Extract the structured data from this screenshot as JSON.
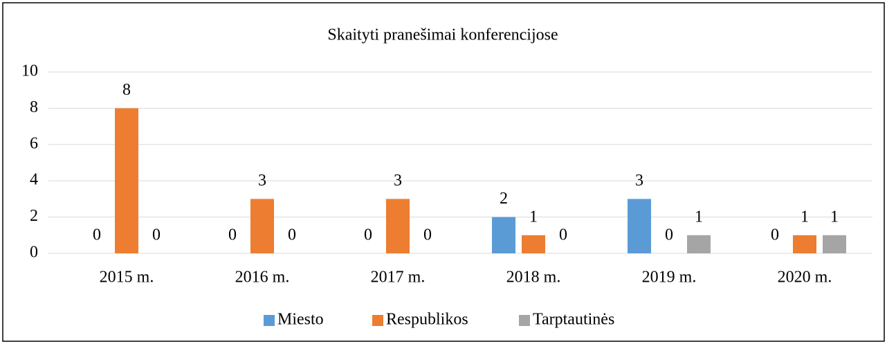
{
  "chart_data": {
    "type": "bar",
    "title": "Skaityti pranešimai konferencijose",
    "categories": [
      "2015 m.",
      "2016 m.",
      "2017 m.",
      "2018 m.",
      "2019 m.",
      "2020 m."
    ],
    "series": [
      {
        "name": "Miesto",
        "color": "#5b9bd5",
        "values": [
          0,
          0,
          0,
          2,
          3,
          0
        ]
      },
      {
        "name": "Respublikos",
        "color": "#ed7d31",
        "values": [
          8,
          3,
          3,
          1,
          0,
          1
        ]
      },
      {
        "name": "Tarptautinės",
        "color": "#a5a5a5",
        "values": [
          0,
          0,
          0,
          0,
          1,
          1
        ]
      }
    ],
    "ylim": [
      0,
      10
    ],
    "yticks": [
      0,
      2,
      4,
      6,
      8,
      10
    ],
    "grid": true,
    "legend": "bottom"
  }
}
